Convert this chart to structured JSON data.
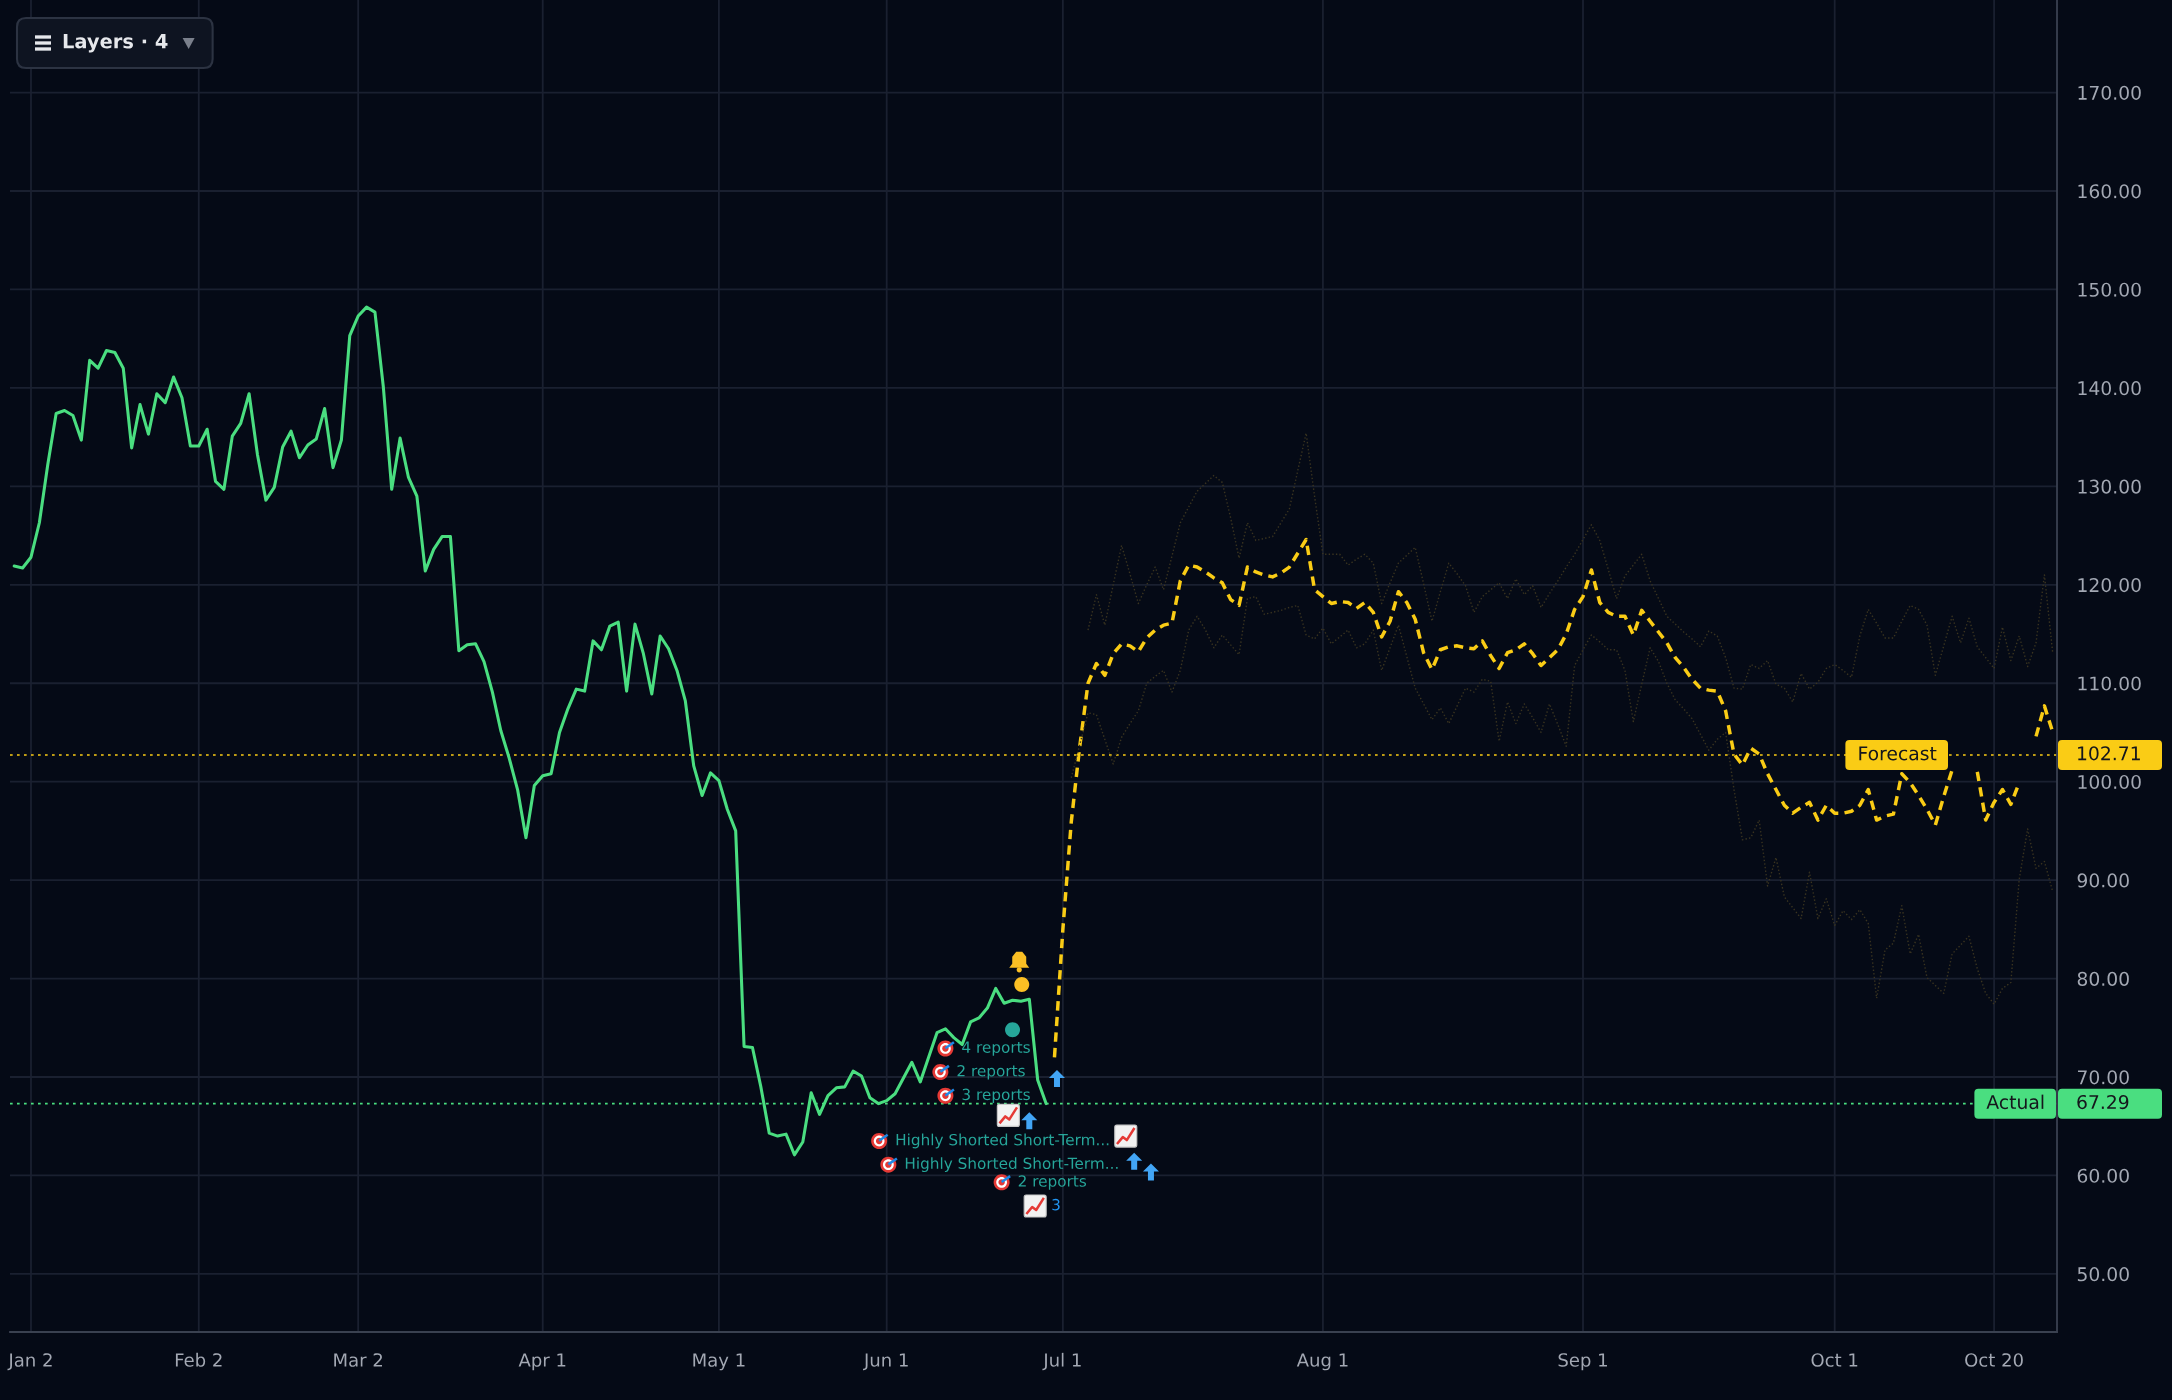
{
  "chart_data": {
    "type": "line",
    "categories": [
      null,
      null,
      "Jan 2",
      null,
      null,
      null,
      null,
      null,
      null,
      null,
      null,
      null,
      null,
      null,
      null,
      null,
      null,
      null,
      null,
      null,
      null,
      null,
      "Feb 2",
      null,
      null,
      null,
      null,
      null,
      null,
      null,
      null,
      null,
      null,
      null,
      null,
      null,
      null,
      null,
      null,
      null,
      null,
      "Mar 2",
      null,
      null,
      null,
      null,
      null,
      null,
      null,
      null,
      null,
      null,
      null,
      null,
      null,
      null,
      null,
      null,
      null,
      null,
      null,
      null,
      null,
      "Apr 1",
      null,
      null,
      null,
      null,
      null,
      null,
      null,
      null,
      null,
      null,
      null,
      null,
      null,
      null,
      null,
      null,
      null,
      null,
      null,
      null,
      "May 1",
      null,
      null,
      null,
      null,
      null,
      null,
      null,
      null,
      null,
      null,
      null,
      null,
      null,
      null,
      null,
      null,
      null,
      null,
      null,
      "Jun 1",
      null,
      null,
      null,
      null,
      null,
      null,
      null,
      null,
      null,
      null,
      null,
      null,
      null,
      null,
      null,
      null,
      null,
      null,
      null,
      null,
      "Jul 1",
      null,
      null,
      null,
      null,
      null,
      null,
      null,
      null,
      null,
      null,
      null,
      null,
      null,
      null,
      null,
      null,
      null,
      null,
      null,
      null,
      null,
      null,
      null,
      null,
      null,
      null,
      null,
      null,
      null,
      null,
      "Aug 1",
      null,
      null,
      null,
      null,
      null,
      null,
      null,
      null,
      null,
      null,
      null,
      null,
      null,
      null,
      null,
      null,
      null,
      null,
      null,
      null,
      null,
      null,
      null,
      null,
      null,
      null,
      null,
      null,
      null,
      null,
      "Sep 1",
      null,
      null,
      null,
      null,
      null,
      null,
      null,
      null,
      null,
      null,
      null,
      null,
      null,
      null,
      null,
      null,
      null,
      null,
      null,
      null,
      null,
      null,
      null,
      null,
      null,
      null,
      null,
      null,
      null,
      "Oct 1",
      null,
      null,
      null,
      null,
      null,
      null,
      null,
      null,
      null,
      null,
      null,
      null,
      null,
      null,
      null,
      null,
      null,
      null,
      "Oct 20",
      null,
      null,
      null,
      null,
      null,
      null,
      null
    ],
    "ylim": [
      44.1,
      179.4
    ],
    "yticks": [
      {
        "value": 50,
        "label": "50.00"
      },
      {
        "value": 60,
        "label": "60.00"
      },
      {
        "value": 70,
        "label": "70.00"
      },
      {
        "value": 80,
        "label": "80.00"
      },
      {
        "value": 90,
        "label": "90.00"
      },
      {
        "value": 100,
        "label": "100.00"
      },
      {
        "value": 110,
        "label": "110.00"
      },
      {
        "value": 120,
        "label": "120.00"
      },
      {
        "value": 130,
        "label": "130.00"
      },
      {
        "value": 140,
        "label": "140.00"
      },
      {
        "value": 150,
        "label": "150.00"
      },
      {
        "value": 160,
        "label": "160.00"
      },
      {
        "value": 170,
        "label": "170.00"
      }
    ],
    "grid": true,
    "series": [
      {
        "color": "#4ade80",
        "line_style": "solid",
        "values": [
          121.9,
          121.7,
          122.8,
          126.3,
          132.2,
          137.4,
          137.7,
          137.2,
          134.7,
          142.8,
          142.0,
          143.8,
          143.6,
          142.0,
          133.9,
          138.3,
          135.3,
          139.4,
          138.5,
          141.1,
          139.0,
          134.1,
          134.1,
          135.8,
          130.5,
          129.7,
          135.1,
          136.4,
          139.4,
          133.2,
          128.6,
          129.9,
          134.0,
          135.6,
          132.9,
          134.2,
          134.8,
          137.9,
          131.9,
          134.7,
          145.3,
          147.3,
          148.2,
          147.7,
          140.1,
          129.7,
          134.9,
          130.9,
          129.0,
          121.4,
          123.6,
          124.9,
          124.9,
          113.3,
          113.9,
          114.0,
          112.2,
          109.1,
          105.2,
          102.4,
          99.2,
          94.3,
          99.6,
          100.6,
          100.8,
          105.0,
          107.4,
          109.4,
          109.2,
          114.3,
          113.4,
          115.8,
          116.2,
          109.2,
          116.0,
          113.0,
          108.9,
          114.8,
          113.5,
          111.3,
          108.2,
          101.6,
          98.6,
          100.9,
          100.1,
          97.2,
          95.0,
          73.1,
          73.0,
          69.0,
          64.3,
          64.0,
          64.2,
          62.1,
          63.4,
          68.4,
          66.2,
          68.1,
          68.9,
          69.0,
          70.6,
          70.1,
          67.9,
          67.3,
          67.6,
          68.3,
          69.9,
          71.5,
          69.5,
          72.0,
          74.5,
          74.9,
          74.0,
          73.3,
          75.6,
          76.0,
          77.0,
          79.0,
          77.5,
          77.8,
          77.7,
          77.9,
          69.7,
          67.3,
          null,
          null,
          null,
          null,
          null,
          null,
          null,
          null,
          null,
          null,
          null,
          null,
          null,
          null,
          null,
          null,
          null,
          null,
          null,
          null,
          null,
          null,
          null,
          null,
          null,
          null,
          null,
          null,
          null,
          null,
          null,
          null,
          null,
          null,
          null,
          null,
          null,
          null,
          null,
          null,
          null,
          null,
          null,
          null,
          null,
          null,
          null,
          null,
          null,
          null,
          null,
          null,
          null,
          null,
          null,
          null,
          null,
          null,
          null,
          null,
          null,
          null,
          null,
          null,
          null,
          null,
          null,
          null,
          null,
          null,
          null,
          null,
          null,
          null,
          null,
          null,
          null,
          null,
          null,
          null,
          null,
          null,
          null,
          null,
          null,
          null,
          null,
          null,
          null,
          null,
          null,
          null,
          null,
          null,
          null,
          null,
          null,
          null,
          null,
          null,
          null,
          null,
          null,
          null,
          null,
          null,
          null,
          null,
          null,
          null,
          null,
          null,
          null,
          null,
          null,
          null,
          null,
          null,
          null,
          null
        ]
      },
      {
        "color": "#facc15",
        "line_style": "dashed",
        "values": [
          null,
          null,
          null,
          null,
          null,
          null,
          null,
          null,
          null,
          null,
          null,
          null,
          null,
          null,
          null,
          null,
          null,
          null,
          null,
          null,
          null,
          null,
          null,
          null,
          null,
          null,
          null,
          null,
          null,
          null,
          null,
          null,
          null,
          null,
          null,
          null,
          null,
          null,
          null,
          null,
          null,
          null,
          null,
          null,
          null,
          null,
          null,
          null,
          null,
          null,
          null,
          null,
          null,
          null,
          null,
          null,
          null,
          null,
          null,
          null,
          null,
          null,
          null,
          null,
          null,
          null,
          null,
          null,
          null,
          null,
          null,
          null,
          null,
          null,
          null,
          null,
          null,
          null,
          null,
          null,
          null,
          null,
          null,
          null,
          null,
          null,
          null,
          null,
          null,
          null,
          null,
          null,
          null,
          null,
          null,
          null,
          null,
          null,
          null,
          null,
          null,
          null,
          null,
          null,
          null,
          null,
          null,
          null,
          null,
          null,
          null,
          null,
          null,
          null,
          null,
          null,
          null,
          null,
          null,
          null,
          null,
          null,
          null,
          null,
          72.0,
          85.0,
          95.9,
          103.5,
          110.0,
          112.0,
          110.8,
          113.0,
          114.0,
          113.8,
          113.2,
          114.6,
          115.4,
          115.9,
          116.1,
          120.4,
          122.0,
          121.8,
          121.3,
          120.7,
          120.2,
          118.5,
          117.9,
          121.8,
          121.3,
          121.0,
          120.8,
          121.2,
          121.8,
          123.2,
          124.6,
          119.5,
          118.8,
          118.1,
          118.3,
          118.2,
          117.6,
          118.2,
          117.2,
          114.7,
          116.3,
          119.3,
          118.2,
          116.5,
          113.1,
          111.4,
          113.4,
          113.7,
          113.8,
          113.6,
          113.5,
          114.3,
          112.8,
          111.5,
          113.1,
          113.4,
          114.0,
          113.0,
          111.8,
          112.6,
          113.4,
          115.0,
          117.5,
          118.8,
          121.5,
          118.2,
          117.2,
          116.8,
          116.8,
          114.9,
          117.4,
          116.3,
          115.2,
          114.1,
          112.6,
          111.6,
          110.4,
          109.5,
          109.3,
          109.2,
          107.2,
          102.8,
          101.7,
          103.4,
          102.8,
          100.8,
          99.2,
          97.6,
          96.8,
          97.4,
          97.9,
          96.1,
          97.6,
          96.8,
          96.8,
          97.0,
          97.6,
          99.2,
          96.1,
          96.5,
          96.7,
          100.8,
          99.9,
          98.6,
          97.2,
          95.6,
          98.5,
          101.2,
          null,
          null,
          101.0,
          96.1,
          97.9,
          99.2,
          97.7,
          99.9,
          null,
          104.6,
          107.7,
          105.0
        ]
      },
      {
        "color": "#3a3420",
        "line_style": "dotted",
        "values": [
          null,
          null,
          null,
          null,
          null,
          null,
          null,
          null,
          null,
          null,
          null,
          null,
          null,
          null,
          null,
          null,
          null,
          null,
          null,
          null,
          null,
          null,
          null,
          null,
          null,
          null,
          null,
          null,
          null,
          null,
          null,
          null,
          null,
          null,
          null,
          null,
          null,
          null,
          null,
          null,
          null,
          null,
          null,
          null,
          null,
          null,
          null,
          null,
          null,
          null,
          null,
          null,
          null,
          null,
          null,
          null,
          null,
          null,
          null,
          null,
          null,
          null,
          null,
          null,
          null,
          null,
          null,
          null,
          null,
          null,
          null,
          null,
          null,
          null,
          null,
          null,
          null,
          null,
          null,
          null,
          null,
          null,
          null,
          null,
          null,
          null,
          null,
          null,
          null,
          null,
          null,
          null,
          null,
          null,
          null,
          null,
          null,
          null,
          null,
          null,
          null,
          null,
          null,
          null,
          null,
          null,
          null,
          null,
          null,
          null,
          null,
          null,
          null,
          null,
          null,
          null,
          null,
          null,
          null,
          null,
          null,
          null,
          null,
          null,
          null,
          null,
          null,
          null,
          115.4,
          119.0,
          115.9,
          120.0,
          124.0,
          121.1,
          118.1,
          120.0,
          121.8,
          119.5,
          122.9,
          126.3,
          127.9,
          129.5,
          130.3,
          131.1,
          130.4,
          126.8,
          122.7,
          126.3,
          124.5,
          124.7,
          124.9,
          126.3,
          127.7,
          131.6,
          135.4,
          129.0,
          123.1,
          123.1,
          123.1,
          122.0,
          122.6,
          123.1,
          122.2,
          118.1,
          120.2,
          122.2,
          123.0,
          123.8,
          120.1,
          116.3,
          119.3,
          122.2,
          121.1,
          119.9,
          117.2,
          118.8,
          119.5,
          120.2,
          118.6,
          120.6,
          119.0,
          119.9,
          117.7,
          119.1,
          120.4,
          121.8,
          123.1,
          124.6,
          126.1,
          124.5,
          121.6,
          118.6,
          120.9,
          122.0,
          123.1,
          120.4,
          118.6,
          116.8,
          116.0,
          115.2,
          114.5,
          113.7,
          115.3,
          114.8,
          112.6,
          109.5,
          109.4,
          111.9,
          111.5,
          112.3,
          109.9,
          109.5,
          108.1,
          111.0,
          109.4,
          110.1,
          111.5,
          111.9,
          111.3,
          110.6,
          114.8,
          117.5,
          116.1,
          114.6,
          114.6,
          116.3,
          117.9,
          117.5,
          115.9,
          110.8,
          113.8,
          116.8,
          114.1,
          116.6,
          113.7,
          112.6,
          111.5,
          115.7,
          112.3,
          114.8,
          111.7,
          114.1,
          121.0,
          113.0
        ]
      },
      {
        "color": "#3a3420",
        "line_style": "dotted",
        "values": [
          null,
          null,
          null,
          null,
          null,
          null,
          null,
          null,
          null,
          null,
          null,
          null,
          null,
          null,
          null,
          null,
          null,
          null,
          null,
          null,
          null,
          null,
          null,
          null,
          null,
          null,
          null,
          null,
          null,
          null,
          null,
          null,
          null,
          null,
          null,
          null,
          null,
          null,
          null,
          null,
          null,
          null,
          null,
          null,
          null,
          null,
          null,
          null,
          null,
          null,
          null,
          null,
          null,
          null,
          null,
          null,
          null,
          null,
          null,
          null,
          null,
          null,
          null,
          null,
          null,
          null,
          null,
          null,
          null,
          null,
          null,
          null,
          null,
          null,
          null,
          null,
          null,
          null,
          null,
          null,
          null,
          null,
          null,
          null,
          null,
          null,
          null,
          null,
          null,
          null,
          null,
          null,
          null,
          null,
          null,
          null,
          null,
          null,
          null,
          null,
          null,
          null,
          null,
          null,
          null,
          null,
          null,
          null,
          null,
          null,
          null,
          null,
          null,
          null,
          null,
          null,
          null,
          null,
          null,
          null,
          null,
          null,
          null,
          null,
          null,
          null,
          100.4,
          103.7,
          107.0,
          106.8,
          104.3,
          101.8,
          104.5,
          105.9,
          107.2,
          110.0,
          110.7,
          111.3,
          109.1,
          111.3,
          115.4,
          116.8,
          115.4,
          113.6,
          114.9,
          113.9,
          112.9,
          118.6,
          118.8,
          117.0,
          117.2,
          117.4,
          117.7,
          117.9,
          114.9,
          114.5,
          115.6,
          114.0,
          114.7,
          115.4,
          113.6,
          114.0,
          115.4,
          111.3,
          113.6,
          115.9,
          112.7,
          109.5,
          107.9,
          106.3,
          107.5,
          105.9,
          107.7,
          109.5,
          109.1,
          110.4,
          110.2,
          104.1,
          108.1,
          105.9,
          107.9,
          106.5,
          105.0,
          107.9,
          105.8,
          103.6,
          111.8,
          113.4,
          114.9,
          114.2,
          113.4,
          113.4,
          111.3,
          106.1,
          109.9,
          113.6,
          112.2,
          110.0,
          108.3,
          107.4,
          106.4,
          104.8,
          103.2,
          104.3,
          105.0,
          99.2,
          94.1,
          94.3,
          96.1,
          89.4,
          92.3,
          88.3,
          87.2,
          86.1,
          90.8,
          86.1,
          88.1,
          85.4,
          86.9,
          86.0,
          87.0,
          85.6,
          78.0,
          82.9,
          83.6,
          87.4,
          82.5,
          84.5,
          80.1,
          79.3,
          78.5,
          82.5,
          83.4,
          84.3,
          81.0,
          78.5,
          77.4,
          79.0,
          79.6,
          90.1,
          95.2,
          91.2,
          91.9,
          88.8
        ]
      }
    ],
    "ref_lines": [
      {
        "axis": "y",
        "value": 102.71,
        "label": "Forecast",
        "color": "#facc15",
        "line_style": "dotted"
      },
      {
        "axis": "y",
        "value": 67.29,
        "label": "Actual",
        "color": "#4ade80",
        "line_style": "dotted"
      }
    ],
    "annotations": [
      "Layers · 4",
      "4 reports",
      "2 reports",
      "3 reports",
      "Highly Shorted Short-Term...",
      "Highly Shorted Short-Term...",
      "2 reports",
      "3",
      "102.71",
      "67.29"
    ]
  }
}
